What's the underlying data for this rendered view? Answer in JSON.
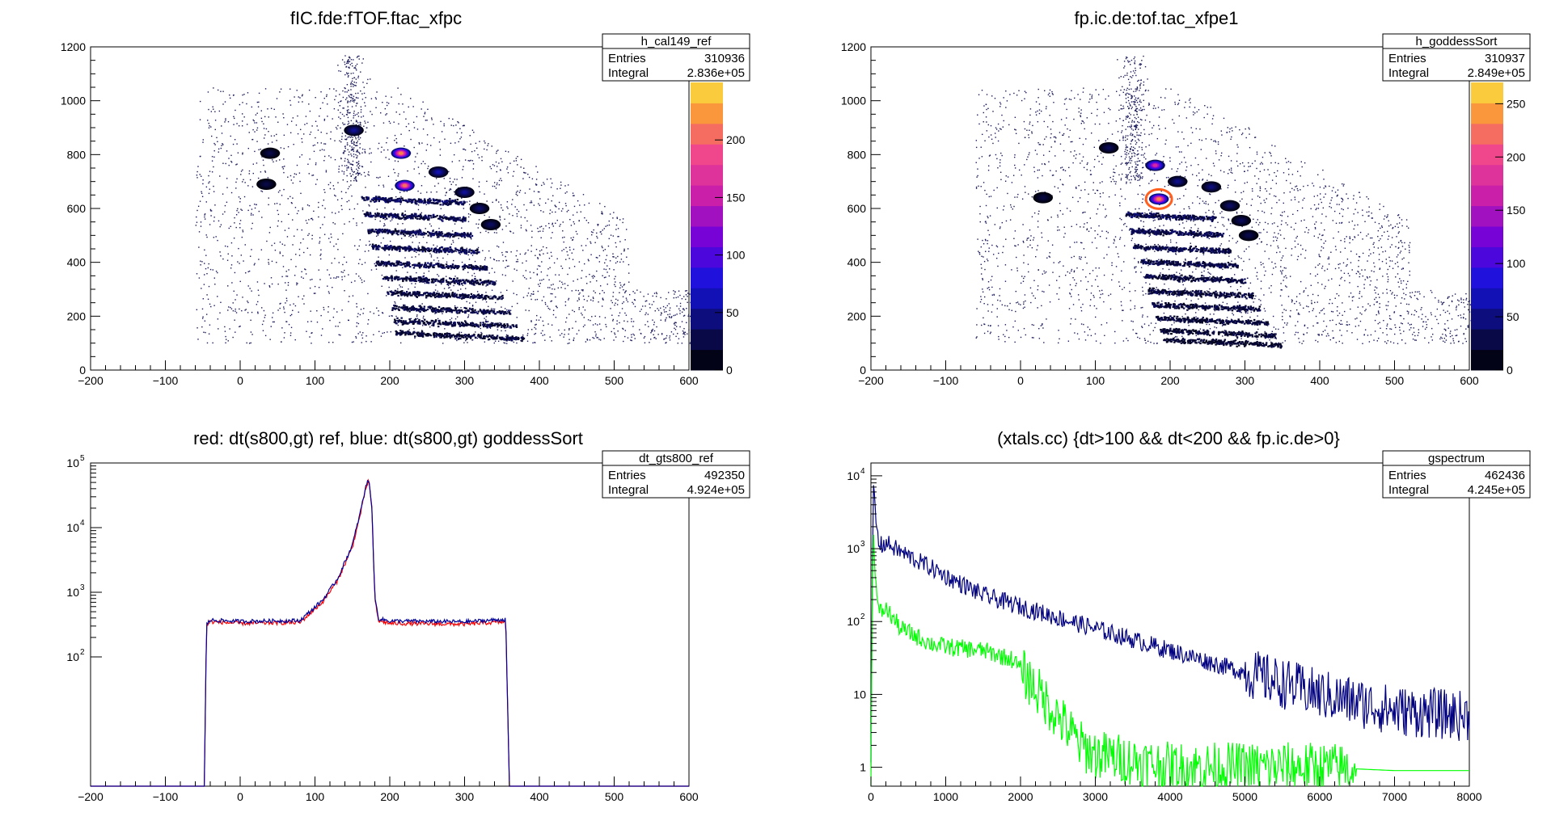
{
  "colors": {
    "red_series": "#ff0000",
    "blue_series": "#000099",
    "green_series": "#00ff00",
    "navy_series": "#000080",
    "gate_contour": "#ff6020"
  },
  "chart_data": [
    {
      "type": "heatmap",
      "title": "fIC.fde:fTOF.ftac_xfpc",
      "xlim": [
        -200,
        600
      ],
      "ylim": [
        0,
        1200
      ],
      "xticks": [
        "−200",
        "−100",
        "0",
        "100",
        "200",
        "300",
        "400",
        "500",
        "600"
      ],
      "yticks": [
        "0",
        "200",
        "400",
        "600",
        "800",
        "1000",
        "1200"
      ],
      "zticks": [
        "0",
        "50",
        "100",
        "150",
        "200"
      ],
      "zlim": [
        0,
        250
      ],
      "grid": false,
      "stats": {
        "name": "h_cal149_ref",
        "entries_label": "Entries",
        "entries": "310936",
        "integral_label": "Integral",
        "integral": "2.836e+05"
      },
      "blobs": [
        {
          "x": 215,
          "y": 805,
          "z": 250
        },
        {
          "x": 152,
          "y": 890,
          "z": 60
        },
        {
          "x": 220,
          "y": 685,
          "z": 240
        },
        {
          "x": 265,
          "y": 735,
          "z": 70
        },
        {
          "x": 300,
          "y": 660,
          "z": 60
        },
        {
          "x": 320,
          "y": 600,
          "z": 45
        },
        {
          "x": 335,
          "y": 540,
          "z": 40
        },
        {
          "x": 40,
          "y": 805,
          "z": 30
        },
        {
          "x": 35,
          "y": 690,
          "z": 30
        }
      ],
      "bands": [
        {
          "x0": 160,
          "x1": 300,
          "y": 640,
          "z": 90
        },
        {
          "x0": 165,
          "x1": 300,
          "y": 580,
          "z": 80
        },
        {
          "x0": 170,
          "x1": 310,
          "y": 520,
          "z": 80
        },
        {
          "x0": 175,
          "x1": 320,
          "y": 460,
          "z": 80
        },
        {
          "x0": 180,
          "x1": 330,
          "y": 400,
          "z": 75
        },
        {
          "x0": 190,
          "x1": 340,
          "y": 345,
          "z": 70
        },
        {
          "x0": 195,
          "x1": 350,
          "y": 290,
          "z": 70
        },
        {
          "x0": 200,
          "x1": 360,
          "y": 235,
          "z": 70
        },
        {
          "x0": 205,
          "x1": 370,
          "y": 185,
          "z": 65
        },
        {
          "x0": 205,
          "x1": 380,
          "y": 140,
          "z": 60
        }
      ]
    },
    {
      "type": "heatmap",
      "title": "fp.ic.de:tof.tac_xfpe1",
      "xlim": [
        -200,
        600
      ],
      "ylim": [
        0,
        1200
      ],
      "xticks": [
        "−200",
        "−100",
        "0",
        "100",
        "200",
        "300",
        "400",
        "500",
        "600"
      ],
      "yticks": [
        "0",
        "200",
        "400",
        "600",
        "800",
        "1000",
        "1200"
      ],
      "zticks": [
        "0",
        "50",
        "100",
        "150",
        "200",
        "250"
      ],
      "zlim": [
        0,
        270
      ],
      "grid": false,
      "stats": {
        "name": "h_goddessSort",
        "entries_label": "Entries",
        "entries": "310937",
        "integral_label": "Integral",
        "integral": "2.849e+05"
      },
      "blobs": [
        {
          "x": 180,
          "y": 760,
          "z": 200
        },
        {
          "x": 185,
          "y": 635,
          "z": 270
        },
        {
          "x": 118,
          "y": 825,
          "z": 40
        },
        {
          "x": 210,
          "y": 700,
          "z": 60
        },
        {
          "x": 255,
          "y": 680,
          "z": 55
        },
        {
          "x": 280,
          "y": 610,
          "z": 45
        },
        {
          "x": 295,
          "y": 555,
          "z": 40
        },
        {
          "x": 305,
          "y": 500,
          "z": 35
        },
        {
          "x": 30,
          "y": 640,
          "z": 30
        }
      ],
      "bands": [
        {
          "x0": 140,
          "x1": 260,
          "y": 580,
          "z": 90
        },
        {
          "x0": 145,
          "x1": 270,
          "y": 520,
          "z": 85
        },
        {
          "x0": 150,
          "x1": 280,
          "y": 460,
          "z": 80
        },
        {
          "x0": 160,
          "x1": 290,
          "y": 405,
          "z": 80
        },
        {
          "x0": 165,
          "x1": 300,
          "y": 350,
          "z": 75
        },
        {
          "x0": 170,
          "x1": 310,
          "y": 295,
          "z": 70
        },
        {
          "x0": 175,
          "x1": 320,
          "y": 245,
          "z": 70
        },
        {
          "x0": 180,
          "x1": 330,
          "y": 195,
          "z": 65
        },
        {
          "x0": 185,
          "x1": 340,
          "y": 150,
          "z": 60
        },
        {
          "x0": 190,
          "x1": 350,
          "y": 115,
          "z": 55
        }
      ],
      "gate": {
        "x": 185,
        "y": 635,
        "rx": 16,
        "ry": 42
      }
    },
    {
      "type": "line",
      "title": "red: dt(s800,gt) ref, blue: dt(s800,gt) goddessSort",
      "xlim": [
        -200,
        600
      ],
      "ylim_log": [
        1,
        100000
      ],
      "log_y": true,
      "xticks": [
        "−200",
        "−100",
        "0",
        "100",
        "200",
        "300",
        "400",
        "500",
        "600"
      ],
      "ytick_values": [
        100,
        1000,
        10000,
        100000
      ],
      "ytick_mantissa": "10",
      "ytick_exponents": [
        "2",
        "3",
        "4",
        "5"
      ],
      "stats": {
        "name": "dt_gts800_ref",
        "entries_label": "Entries",
        "entries": "492350",
        "integral_label": "Integral",
        "integral": "4.924e+05"
      },
      "series": [
        {
          "color": "red",
          "x": [
            -200,
            -48,
            -45,
            -40,
            0,
            80,
            110,
            130,
            150,
            160,
            168,
            172,
            176,
            180,
            185,
            200,
            300,
            355,
            360,
            600
          ],
          "y": [
            1,
            1,
            300,
            350,
            330,
            340,
            700,
            1500,
            5000,
            15000,
            40000,
            55000,
            20000,
            800,
            360,
            330,
            320,
            350,
            1,
            1
          ]
        },
        {
          "color": "blue",
          "x": [
            -200,
            -48,
            -45,
            -40,
            0,
            80,
            110,
            130,
            150,
            160,
            168,
            172,
            176,
            180,
            185,
            200,
            300,
            355,
            360,
            600
          ],
          "y": [
            1,
            1,
            320,
            370,
            355,
            365,
            750,
            1600,
            5400,
            16000,
            43000,
            57000,
            21000,
            850,
            390,
            360,
            350,
            380,
            1,
            1
          ]
        }
      ]
    },
    {
      "type": "line",
      "title": "(xtals.cc) {dt>100 && dt<200 && fp.ic.de>0}",
      "xlim": [
        0,
        8000
      ],
      "ylim_log": [
        0.55,
        15000
      ],
      "log_y": true,
      "xticks": [
        "0",
        "1000",
        "2000",
        "3000",
        "4000",
        "5000",
        "6000",
        "7000",
        "8000"
      ],
      "ytick_values": [
        1,
        10,
        100,
        1000,
        10000
      ],
      "ytick_labels": [
        "1",
        "10",
        "",
        "",
        ""
      ],
      "ytick_mantissa": "10",
      "ytick_exponents": [
        "",
        "",
        "2",
        "3",
        "4"
      ],
      "stats": {
        "name": "gspectrum",
        "entries_label": "Entries",
        "entries": "462436",
        "integral_label": "Integral",
        "integral": "4.245e+05"
      },
      "series": [
        {
          "color": "navy",
          "x": [
            0,
            30,
            60,
            100,
            150,
            200,
            400,
            800,
            1000,
            1500,
            2000,
            3000,
            4000,
            5000,
            6000,
            7000,
            8000
          ],
          "y": [
            1,
            8000,
            3000,
            1200,
            1100,
            1200,
            900,
            550,
            420,
            230,
            160,
            80,
            40,
            20,
            10,
            6,
            5
          ]
        },
        {
          "color": "green",
          "x": [
            0,
            30,
            60,
            100,
            150,
            200,
            400,
            800,
            1000,
            1500,
            1900,
            2200,
            2500,
            2800,
            3000,
            4000,
            5000,
            6000,
            7000,
            8000
          ],
          "y": [
            1,
            2500,
            400,
            130,
            140,
            150,
            80,
            50,
            45,
            40,
            30,
            12,
            5,
            2,
            1.5,
            1,
            1,
            1,
            0.9,
            0.9
          ]
        }
      ]
    }
  ]
}
